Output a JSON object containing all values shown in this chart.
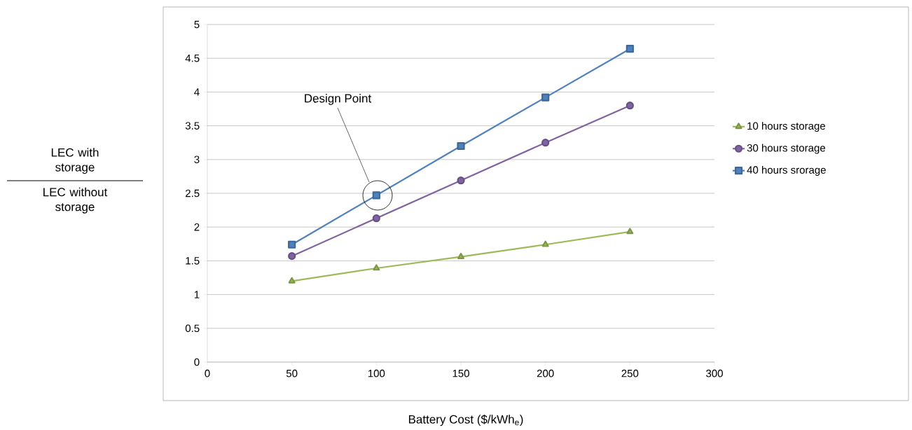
{
  "chart_data": {
    "type": "line",
    "xlabel": "Battery Cost ($/kWh$_{e}$)",
    "annotations": [
      "LEC with storage",
      "LEC without storage",
      "Design Point"
    ],
    "x": [
      50,
      100,
      150,
      200,
      250
    ],
    "series": [
      {
        "name": "10 hours storage",
        "color": "#9bbb59",
        "marker": "triangle",
        "values": [
          1.2,
          1.39,
          1.56,
          1.74,
          1.93
        ]
      },
      {
        "name": "30 hours storage",
        "color": "#8064a2",
        "marker": "circle",
        "values": [
          1.57,
          2.13,
          2.69,
          3.25,
          3.8
        ]
      },
      {
        "name": "40 hours srorage",
        "color": "#4f81bd",
        "marker": "square",
        "values": [
          1.74,
          2.47,
          3.2,
          3.92,
          4.64
        ]
      }
    ],
    "xlim": [
      0,
      300
    ],
    "ylim": [
      0,
      5
    ],
    "xticks": [
      0,
      50,
      100,
      150,
      200,
      250,
      300
    ],
    "yticks": [
      0,
      0.5,
      1,
      1.5,
      2,
      2.5,
      3,
      3.5,
      4,
      4.5,
      5
    ],
    "grid": "y",
    "legend": "right",
    "line_style": "solid"
  }
}
